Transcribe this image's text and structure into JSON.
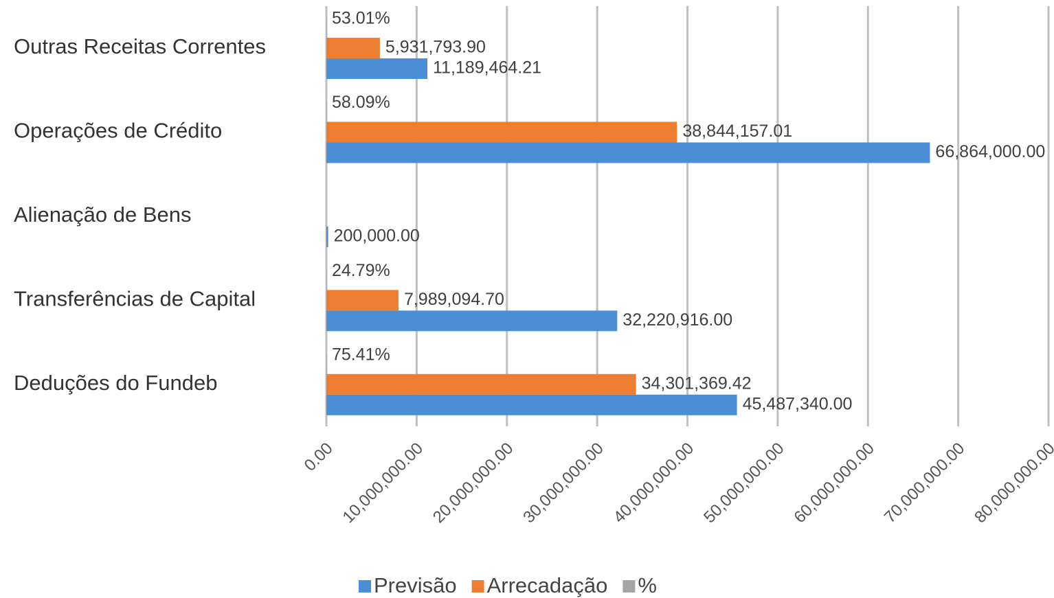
{
  "chart_data": {
    "type": "hbar",
    "categories": [
      "Outras Receitas Correntes",
      "Operações de Crédito",
      "Alienação de Bens",
      "Transferências de Capital",
      "Deduções do Fundeb"
    ],
    "series": [
      {
        "name": "Previsão",
        "color": "#4a8fd6",
        "values": [
          11189464.21,
          66864000.0,
          200000.0,
          32220916.0,
          45487340.0
        ],
        "value_labels": [
          "11,189,464.21",
          "66,864,000.00",
          "200,000.00",
          "32,220,916.00",
          "45,487,340.00"
        ]
      },
      {
        "name": "Arrecadação",
        "color": "#ed7d31",
        "values": [
          5931793.9,
          38844157.01,
          null,
          7989094.7,
          34301369.42
        ],
        "value_labels": [
          "5,931,793.90",
          "38,844,157.01",
          null,
          "7,989,094.70",
          "34,301,369.42"
        ]
      },
      {
        "name": "%",
        "color": "#a5a5a5",
        "values": [
          53.01,
          58.09,
          null,
          24.79,
          75.41
        ],
        "value_labels": [
          "53.01%",
          "58.09%",
          null,
          "24.79%",
          "75.41%"
        ]
      }
    ],
    "xlim": [
      0,
      80000000
    ],
    "xticks": [
      {
        "value": 0,
        "label": "0.00"
      },
      {
        "value": 10000000,
        "label": "10,000,000.00"
      },
      {
        "value": 20000000,
        "label": "20,000,000.00"
      },
      {
        "value": 30000000,
        "label": "30,000,000.00"
      },
      {
        "value": 40000000,
        "label": "40,000,000.00"
      },
      {
        "value": 50000000,
        "label": "50,000,000.00"
      },
      {
        "value": 60000000,
        "label": "60,000,000.00"
      },
      {
        "value": 70000000,
        "label": "70,000,000.00"
      },
      {
        "value": 80000000,
        "label": "80,000,000.00"
      }
    ],
    "grid": true,
    "legend": "bottom"
  }
}
